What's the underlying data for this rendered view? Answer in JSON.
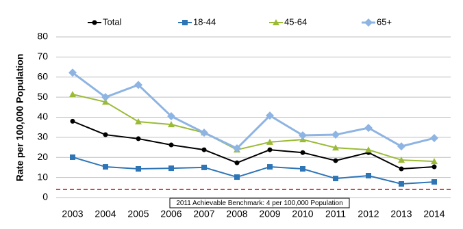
{
  "chart_data": {
    "type": "line",
    "y_label": "Rate per 100,000 Population",
    "categories": [
      "2003",
      "2004",
      "2005",
      "2006",
      "2007",
      "2008",
      "2009",
      "2010",
      "2011",
      "2012",
      "2013",
      "2014"
    ],
    "series": [
      {
        "name": "Total",
        "color": "#000000",
        "marker": "circle",
        "values": [
          38,
          31.3,
          29.3,
          26.2,
          23.8,
          17.3,
          23.8,
          22.4,
          18.4,
          22.4,
          14.3,
          15.3
        ]
      },
      {
        "name": "18-44",
        "color": "#2e75b6",
        "marker": "square",
        "values": [
          20.1,
          15.3,
          14.3,
          14.6,
          15,
          10.2,
          15.3,
          14.3,
          9.5,
          10.9,
          6.8,
          7.8
        ]
      },
      {
        "name": "45-64",
        "color": "#9bbb37",
        "marker": "triangle",
        "values": [
          51.4,
          47.6,
          37.8,
          36.4,
          32.3,
          23.8,
          27.6,
          28.9,
          24.8,
          23.8,
          18.7,
          18
        ]
      },
      {
        "name": "65+",
        "color": "#8eb4e3",
        "marker": "diamond",
        "values": [
          62.2,
          50,
          56.1,
          40.5,
          32.3,
          24.5,
          40.8,
          31,
          31.3,
          34.7,
          25.5,
          29.6
        ]
      }
    ],
    "benchmark": {
      "value": 4,
      "label": "2011 Achievable Benchmark: 4 per 100,000 Population",
      "color": "#e02020"
    },
    "ylim": [
      0,
      80
    ],
    "yticks": [
      0,
      10,
      20,
      30,
      40,
      50,
      60,
      70,
      80
    ],
    "grid": true
  }
}
